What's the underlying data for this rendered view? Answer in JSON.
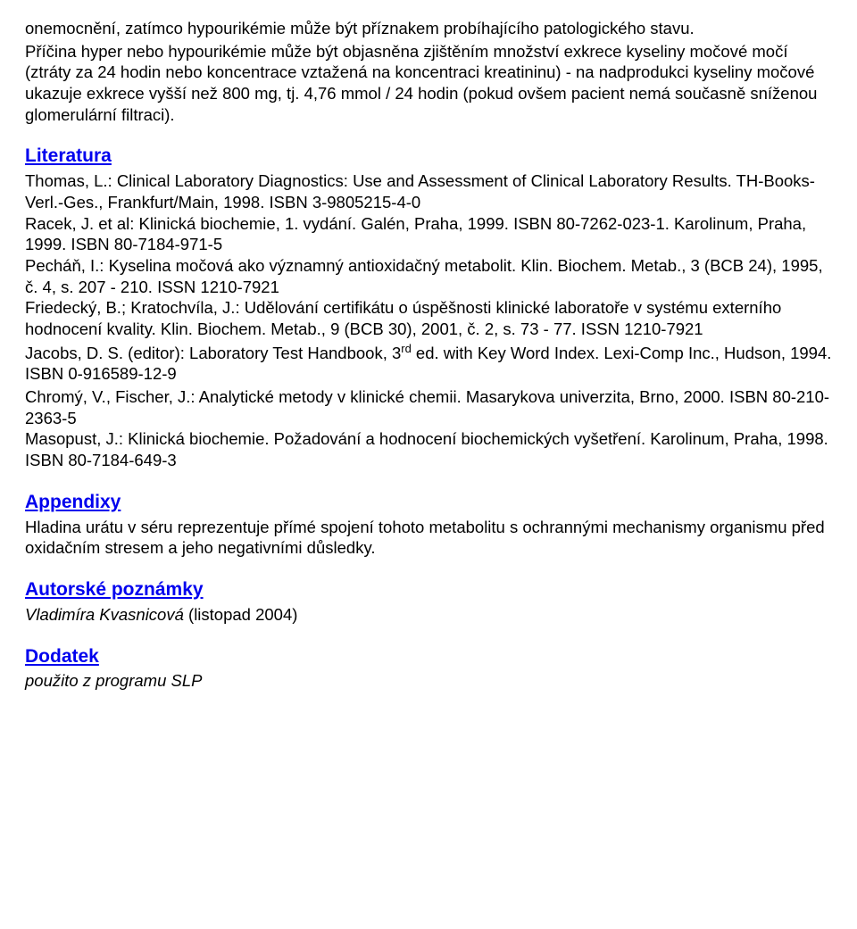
{
  "intro": {
    "p1": "onemocnění, zatímco hypourikémie může být příznakem probíhajícího patologického stavu.",
    "p2": "Příčina hyper nebo hypourikémie může být objasněna zjištěním množství exkrece kyseliny močové močí (ztráty za 24 hodin nebo koncentrace vztažená na koncentraci kreatininu) - na nadprodukci kyseliny močové ukazuje exkrece vyšší než 800 mg, tj. 4,76 mmol / 24 hodin (pokud ovšem pacient nemá současně sníženou glomerulární filtraci)."
  },
  "literatura": {
    "heading": "Literatura",
    "body": "Thomas, L.: Clinical Laboratory Diagnostics: Use and Assessment of Clinical Laboratory Results. TH-Books-Verl.-Ges., Frankfurt/Main, 1998. ISBN 3-9805215-4-0\nRacek, J. et al: Klinická biochemie, 1. vydání. Galén, Praha, 1999. ISBN 80-7262-023-1. Karolinum, Praha, 1999. ISBN 80-7184-971-5\nPecháň, I.: Kyselina močová ako významný antioxidačný metabolit. Klin. Biochem. Metab., 3 (BCB 24), 1995, č. 4, s. 207 - 210. ISSN 1210-7921\nFriedecký, B.; Kratochvíla, J.: Udělování certifikátu o úspěšnosti klinické laboratoře v systému externího hodnocení kvality. Klin. Biochem. Metab., 9 (BCB 30), 2001, č. 2, s. 73 - 77. ISSN 1210-7921",
    "jacobs_pre": "Jacobs, D. S. (editor): Laboratory Test Handbook, 3",
    "jacobs_sup": "rd",
    "jacobs_post": " ed. with Key Word Index. Lexi-Comp Inc., Hudson, 1994. ISBN 0-916589-12-9",
    "body2": "Chromý, V., Fischer, J.: Analytické metody v klinické chemii. Masarykova univerzita, Brno, 2000. ISBN 80-210-2363-5\nMasopust, J.: Klinická biochemie. Požadování a hodnocení biochemických vyšetření. Karolinum, Praha, 1998. ISBN 80-7184-649-3"
  },
  "appendixy": {
    "heading": "Appendixy",
    "body": "Hladina urátu v séru reprezentuje přímé spojení tohoto metabolitu s ochrannými mechanismy organismu před oxidačním stresem a jeho negativními důsledky."
  },
  "autorske": {
    "heading": "Autorské poznámky",
    "author_italic": "Vladimíra Kvasnicová",
    "author_rest": " (listopad 2004)"
  },
  "dodatek": {
    "heading": "Dodatek",
    "body": "použito z programu SLP"
  }
}
